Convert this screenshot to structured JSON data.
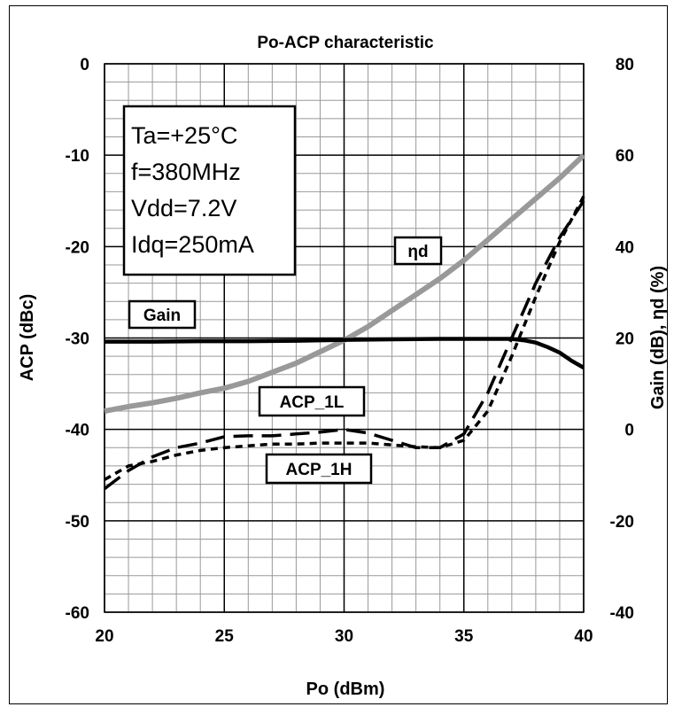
{
  "chart_data": {
    "type": "line",
    "title": "Po-ACP characteristic",
    "xlabel": "Po (dBm)",
    "ylabel": "ACP (dBc)",
    "y2label": "Gain (dB), ηd (%)",
    "xlim": [
      20,
      40
    ],
    "ylim": [
      -60,
      0
    ],
    "y2lim": [
      -40,
      80
    ],
    "x_ticks": [
      "20",
      "25",
      "30",
      "35",
      "40"
    ],
    "y_ticks": [
      "0",
      "-10",
      "-20",
      "-30",
      "-40",
      "-50",
      "-60"
    ],
    "y2_ticks": [
      "80",
      "60",
      "40",
      "20",
      "0",
      "-20",
      "-40"
    ],
    "grid": true,
    "conditions": [
      "Ta=+25°C",
      "f=380MHz",
      "Vdd=7.2V",
      "Idq=250mA"
    ],
    "series": [
      {
        "name": "ηd",
        "axis": "right",
        "color": "#999999",
        "style": "solid",
        "x": [
          20,
          21,
          22,
          23,
          24,
          25,
          26,
          27,
          28,
          29,
          30,
          31,
          32,
          33,
          34,
          35,
          36,
          37,
          38,
          39,
          40
        ],
        "y": [
          4,
          5,
          5.8,
          6.8,
          8,
          9,
          10.5,
          12.5,
          14.5,
          17,
          19.5,
          22.5,
          26,
          29.5,
          33,
          37,
          41.5,
          46,
          50.5,
          55,
          60
        ]
      },
      {
        "name": "Gain",
        "axis": "right",
        "color": "#000000",
        "style": "solid",
        "x": [
          20,
          22,
          24,
          26,
          28,
          30,
          32,
          34,
          35,
          36,
          37,
          37.5,
          38,
          38.5,
          39,
          39.5,
          40
        ],
        "y": [
          19.2,
          19.2,
          19.3,
          19.3,
          19.4,
          19.6,
          19.7,
          19.8,
          19.8,
          19.8,
          19.8,
          19.5,
          19,
          18,
          16.8,
          15,
          13.5
        ]
      },
      {
        "name": "ACP_1L",
        "axis": "left",
        "color": "#000000",
        "style": "dash",
        "x": [
          20,
          21,
          22,
          23,
          24,
          25,
          26,
          27,
          28,
          29,
          30,
          31,
          32,
          33,
          34,
          35,
          36,
          37,
          38,
          39,
          40
        ],
        "y": [
          -46.5,
          -44.5,
          -43,
          -42,
          -41.5,
          -40.8,
          -40.7,
          -40.7,
          -40.5,
          -40.3,
          -40,
          -40.4,
          -41.2,
          -42,
          -42,
          -40.5,
          -36,
          -30,
          -24,
          -19,
          -15
        ]
      },
      {
        "name": "ACP_1H",
        "axis": "left",
        "color": "#000000",
        "style": "dot",
        "x": [
          20,
          21,
          22,
          23,
          24,
          25,
          26,
          27,
          28,
          29,
          30,
          31,
          32,
          33,
          34,
          35,
          36,
          37,
          38,
          39,
          40
        ],
        "y": [
          -45.5,
          -44,
          -43.5,
          -42.8,
          -42.3,
          -42,
          -41.8,
          -41.6,
          -41.6,
          -41.5,
          -41.5,
          -41.5,
          -41.7,
          -41.9,
          -42,
          -41.2,
          -38,
          -32,
          -25.5,
          -19.5,
          -14.5
        ]
      }
    ],
    "series_labels": [
      "Gain",
      "ηd",
      "ACP_1L",
      "ACP_1H"
    ]
  },
  "colors": {
    "efficiency": "#999999",
    "gain": "#000000",
    "grid": "#999999"
  }
}
